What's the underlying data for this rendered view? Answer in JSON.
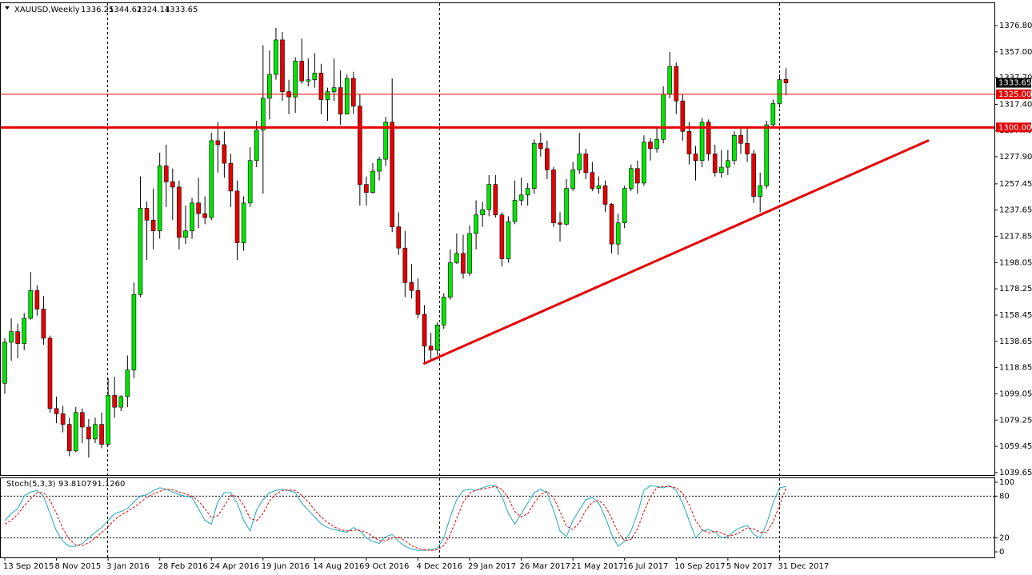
{
  "chart_data": {
    "type": "candlestick",
    "title": "XAUUSD,Weekly",
    "categories": [
      "13 Sep 2015",
      null,
      null,
      null,
      null,
      null,
      null,
      null,
      "8 Nov 2015",
      null,
      null,
      null,
      null,
      null,
      null,
      null,
      "3 Jan 2016",
      null,
      null,
      null,
      null,
      null,
      null,
      null,
      "28 Feb 2016",
      null,
      null,
      null,
      null,
      null,
      null,
      null,
      "24 Apr 2016",
      null,
      null,
      null,
      null,
      null,
      null,
      null,
      "19 Jun 2016",
      null,
      null,
      null,
      null,
      null,
      null,
      null,
      "14 Aug 2016",
      null,
      null,
      null,
      null,
      null,
      null,
      null,
      "9 Oct 2016",
      null,
      null,
      null,
      null,
      null,
      null,
      null,
      "4 Dec 2016",
      null,
      null,
      null,
      null,
      null,
      null,
      null,
      "29 Jan 2017",
      null,
      null,
      null,
      null,
      null,
      null,
      null,
      "26 Mar 2017",
      null,
      null,
      null,
      null,
      null,
      null,
      null,
      "21 May 2017",
      null,
      null,
      null,
      null,
      null,
      null,
      null,
      "16 Jul 2017",
      null,
      null,
      null,
      null,
      null,
      null,
      null,
      "10 Sep 2017",
      null,
      null,
      null,
      null,
      null,
      null,
      null,
      "5 Nov 2017",
      null,
      null,
      null,
      null,
      null,
      null,
      null,
      "31 Dec 2017",
      null
    ],
    "open": [
      1107,
      1138,
      1146,
      1137,
      1156,
      1177,
      1163,
      1141,
      1088,
      1084,
      1076,
      1056,
      1085,
      1074,
      1065,
      1076,
      1061,
      1098,
      1089,
      1097,
      1117,
      1174,
      1239,
      1230,
      1222,
      1271,
      1259,
      1255,
      1217,
      1222,
      1243,
      1235,
      1232,
      1290,
      1287,
      1273,
      1252,
      1213,
      1243,
      1275,
      1298,
      1322,
      1340,
      1366,
      1327,
      1323,
      1350,
      1335,
      1336,
      1341,
      1321,
      1327,
      1330,
      1310,
      1337,
      1316,
      1257,
      1251,
      1267,
      1276,
      1304,
      1225,
      1209,
      1183,
      1177,
      1159,
      1135,
      1132,
      1151,
      1172,
      1198,
      1205,
      1190,
      1220,
      1234,
      1238,
      1257,
      1234,
      1201,
      1229,
      1245,
      1249,
      1254,
      1288,
      1284,
      1268,
      1228,
      1227,
      1254,
      1268,
      1280,
      1266,
      1254,
      1256,
      1242,
      1212,
      1228,
      1254,
      1269,
      1258,
      1289,
      1284,
      1291,
      1325,
      1346,
      1320,
      1297,
      1280,
      1275,
      1304,
      1280,
      1266,
      1270,
      1275,
      1294,
      1288,
      1280,
      1248,
      1256,
      1302,
      1318,
      1336.25
    ],
    "high": [
      1141,
      1156,
      1152,
      1160,
      1191,
      1181,
      1173,
      1143,
      1097,
      1090,
      1081,
      1089,
      1088,
      1080,
      1081,
      1085,
      1111,
      1112,
      1098,
      1128,
      1183,
      1263,
      1244,
      1254,
      1281,
      1287,
      1269,
      1260,
      1241,
      1247,
      1262,
      1248,
      1296,
      1304,
      1297,
      1280,
      1260,
      1248,
      1285,
      1305,
      1362,
      1358,
      1375,
      1372,
      1336,
      1353,
      1367,
      1352,
      1356,
      1348,
      1330,
      1352,
      1343,
      1340,
      1342,
      1325,
      1263,
      1273,
      1278,
      1308,
      1337,
      1236,
      1222,
      1197,
      1186,
      1166,
      1145,
      1153,
      1175,
      1208,
      1220,
      1219,
      1226,
      1245,
      1244,
      1264,
      1264,
      1236,
      1233,
      1260,
      1262,
      1258,
      1291,
      1296,
      1290,
      1270,
      1236,
      1261,
      1274,
      1296,
      1284,
      1274,
      1263,
      1260,
      1243,
      1235,
      1256,
      1272,
      1275,
      1294,
      1292,
      1300,
      1331,
      1357,
      1349,
      1325,
      1304,
      1286,
      1307,
      1306,
      1287,
      1283,
      1283,
      1297,
      1299,
      1300,
      1283,
      1266,
      1305,
      1321,
      1340,
      1344.62
    ],
    "low": [
      1099,
      1124,
      1126,
      1132,
      1155,
      1158,
      1136,
      1085,
      1077,
      1070,
      1052,
      1055,
      1062,
      1051,
      1062,
      1058,
      1060,
      1081,
      1086,
      1089,
      1111,
      1172,
      1200,
      1208,
      1216,
      1240,
      1230,
      1208,
      1212,
      1216,
      1224,
      1227,
      1230,
      1266,
      1262,
      1240,
      1200,
      1207,
      1240,
      1270,
      1250,
      1306,
      1336,
      1320,
      1310,
      1311,
      1333,
      1331,
      1330,
      1310,
      1305,
      1320,
      1302,
      1310,
      1310,
      1241,
      1241,
      1250,
      1260,
      1271,
      1221,
      1204,
      1172,
      1171,
      1156,
      1122,
      1124,
      1128,
      1148,
      1170,
      1197,
      1186,
      1188,
      1208,
      1225,
      1233,
      1232,
      1195,
      1198,
      1227,
      1241,
      1241,
      1250,
      1278,
      1261,
      1225,
      1214,
      1226,
      1252,
      1265,
      1261,
      1252,
      1250,
      1236,
      1205,
      1204,
      1224,
      1252,
      1250,
      1256,
      1275,
      1281,
      1288,
      1322,
      1310,
      1290,
      1272,
      1260,
      1270,
      1275,
      1263,
      1262,
      1264,
      1272,
      1280,
      1274,
      1243,
      1236,
      1254,
      1300,
      1315,
      1324.14
    ],
    "close": [
      1138,
      1146,
      1137,
      1156,
      1177,
      1163,
      1141,
      1088,
      1084,
      1076,
      1056,
      1085,
      1074,
      1065,
      1076,
      1061,
      1098,
      1089,
      1097,
      1117,
      1174,
      1239,
      1230,
      1222,
      1271,
      1259,
      1255,
      1217,
      1222,
      1243,
      1235,
      1232,
      1290,
      1287,
      1273,
      1252,
      1213,
      1243,
      1275,
      1298,
      1322,
      1340,
      1366,
      1327,
      1323,
      1350,
      1335,
      1336,
      1341,
      1321,
      1327,
      1330,
      1310,
      1337,
      1316,
      1257,
      1251,
      1267,
      1276,
      1304,
      1225,
      1209,
      1183,
      1177,
      1159,
      1135,
      1132,
      1151,
      1172,
      1198,
      1205,
      1190,
      1220,
      1234,
      1238,
      1257,
      1234,
      1201,
      1229,
      1245,
      1249,
      1254,
      1288,
      1284,
      1268,
      1228,
      1227,
      1254,
      1268,
      1280,
      1266,
      1254,
      1256,
      1242,
      1212,
      1228,
      1254,
      1269,
      1258,
      1289,
      1284,
      1291,
      1325,
      1346,
      1320,
      1297,
      1280,
      1275,
      1304,
      1280,
      1266,
      1270,
      1275,
      1294,
      1288,
      1280,
      1248,
      1256,
      1302,
      1318,
      1336,
      1333.65
    ],
    "up_color": "#00e600",
    "down_color": "#e60000",
    "ylim": [
      1037.8,
      1393.7
    ],
    "yticks": [
      {
        "value": 1376.8,
        "label": "1376.80"
      },
      {
        "value": 1357,
        "label": "1357.00"
      },
      {
        "value": 1337.7,
        "label": "1337.70"
      },
      {
        "value": 1317.4,
        "label": "1317.40"
      },
      {
        "value": 1297.7,
        "label": "1297.70"
      },
      {
        "value": 1277.9,
        "label": "1277.90"
      },
      {
        "value": 1257.45,
        "label": "1257.45"
      },
      {
        "value": 1237.65,
        "label": "1237.65"
      },
      {
        "value": 1217.85,
        "label": "1217.85"
      },
      {
        "value": 1198.05,
        "label": "1198.05"
      },
      {
        "value": 1178.25,
        "label": "1178.25"
      },
      {
        "value": 1158.45,
        "label": "1158.45"
      },
      {
        "value": 1138.65,
        "label": "1138.65"
      },
      {
        "value": 1118.85,
        "label": "1118.85"
      },
      {
        "value": 1099.05,
        "label": "1099.05"
      },
      {
        "value": 1079.25,
        "label": "1079.25"
      },
      {
        "value": 1059.45,
        "label": "1059.45"
      },
      {
        "value": 1039.65,
        "label": "1039.65"
      }
    ],
    "levels": [
      {
        "value": 1325,
        "label": "1325.00",
        "color": "#e60000",
        "width": 1
      },
      {
        "value": 1300,
        "label": "1300.00",
        "color": "#e60000",
        "width": 3
      }
    ],
    "trendline": {
      "from": [
        65,
        1122
      ],
      "to": [
        143,
        1290
      ],
      "color": "#e60000"
    },
    "stochastic": {
      "title": "Stoch(5,3,3)",
      "ylim": [
        -8,
        105.7
      ],
      "yticks": [
        0,
        20,
        80,
        100
      ],
      "levels": [
        20,
        80
      ],
      "k": {
        "color": "#20a8b8",
        "values": [
          45,
          55,
          62,
          80,
          86,
          88,
          80,
          55,
          30,
          15,
          8,
          8,
          12,
          20,
          28,
          35,
          45,
          55,
          58,
          62,
          72,
          80,
          82,
          88,
          92,
          90,
          86,
          82,
          80,
          78,
          62,
          45,
          40,
          72,
          85,
          85,
          70,
          45,
          30,
          60,
          75,
          85,
          88,
          90,
          88,
          85,
          70,
          60,
          50,
          40,
          35,
          32,
          30,
          28,
          35,
          30,
          20,
          15,
          12,
          22,
          25,
          15,
          8,
          4,
          2,
          2,
          3,
          5,
          20,
          50,
          75,
          88,
          90,
          88,
          92,
          95,
          95,
          80,
          55,
          40,
          55,
          70,
          85,
          90,
          85,
          60,
          30,
          22,
          45,
          60,
          75,
          78,
          70,
          50,
          25,
          8,
          15,
          30,
          55,
          88,
          95,
          94,
          92,
          95,
          88,
          70,
          45,
          20,
          30,
          32,
          28,
          20,
          22,
          30,
          35,
          38,
          25,
          20,
          40,
          70,
          92,
          93.8107
        ]
      },
      "d": {
        "color": "#e60000",
        "label": "91.1260",
        "values": [
          40,
          45,
          54,
          66,
          76,
          85,
          85,
          74,
          55,
          33,
          18,
          10,
          9,
          13,
          20,
          28,
          36,
          46,
          53,
          58,
          64,
          71,
          78,
          83,
          87,
          90,
          89,
          86,
          83,
          80,
          73,
          62,
          49,
          52,
          66,
          81,
          80,
          67,
          48,
          45,
          55,
          73,
          83,
          88,
          89,
          88,
          81,
          72,
          60,
          50,
          42,
          36,
          32,
          30,
          31,
          31,
          28,
          22,
          16,
          16,
          20,
          21,
          16,
          9,
          5,
          3,
          2,
          3,
          9,
          25,
          48,
          71,
          84,
          89,
          90,
          92,
          94,
          90,
          77,
          58,
          50,
          55,
          70,
          82,
          87,
          78,
          58,
          37,
          32,
          42,
          60,
          71,
          74,
          66,
          48,
          28,
          16,
          18,
          33,
          58,
          79,
          92,
          94,
          94,
          92,
          84,
          68,
          45,
          32,
          27,
          30,
          27,
          23,
          24,
          29,
          34,
          33,
          28,
          28,
          43,
          67,
          91.126
        ]
      }
    }
  }
}
